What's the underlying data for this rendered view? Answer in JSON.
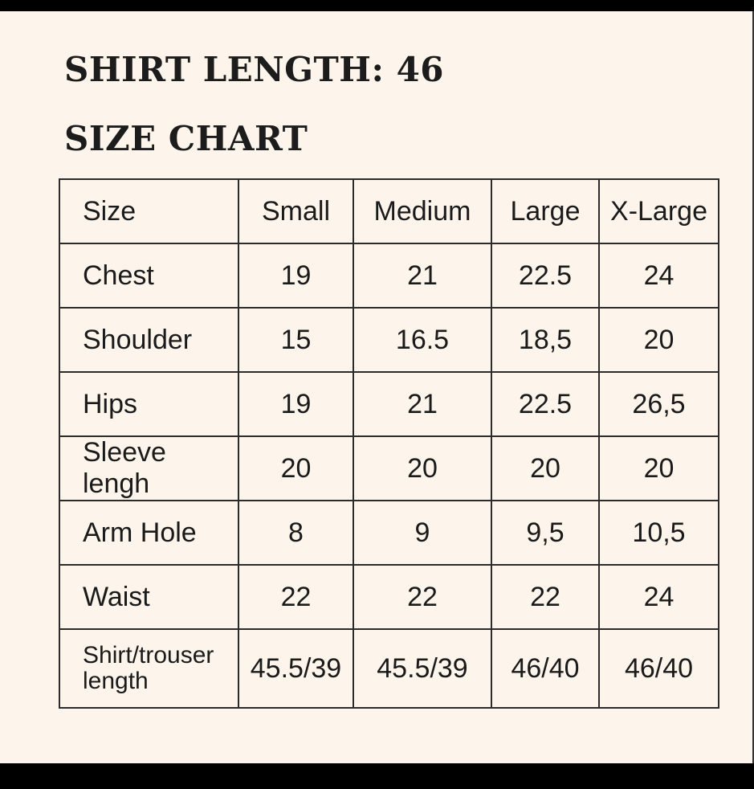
{
  "title": "SHIRT LENGTH: 46",
  "subtitle": "SIZE CHART",
  "table": {
    "headers": [
      "Size",
      "Small",
      "Medium",
      "Large",
      "X-Large"
    ],
    "rows": [
      [
        "Chest",
        "19",
        "21",
        "22.5",
        "24"
      ],
      [
        "Shoulder",
        "15",
        "16.5",
        "18,5",
        "20"
      ],
      [
        "Hips",
        "19",
        "21",
        "22.5",
        "26,5"
      ],
      [
        "Sleeve lengh",
        "20",
        "20",
        "20",
        "20"
      ],
      [
        "Arm Hole",
        "8",
        "9",
        "9,5",
        "10,5"
      ],
      [
        "Waist",
        "22",
        "22",
        "22",
        "24"
      ],
      [
        "Shirt/trouser length",
        "45.5/39",
        "45.5/39",
        "46/40",
        "46/40"
      ]
    ]
  }
}
